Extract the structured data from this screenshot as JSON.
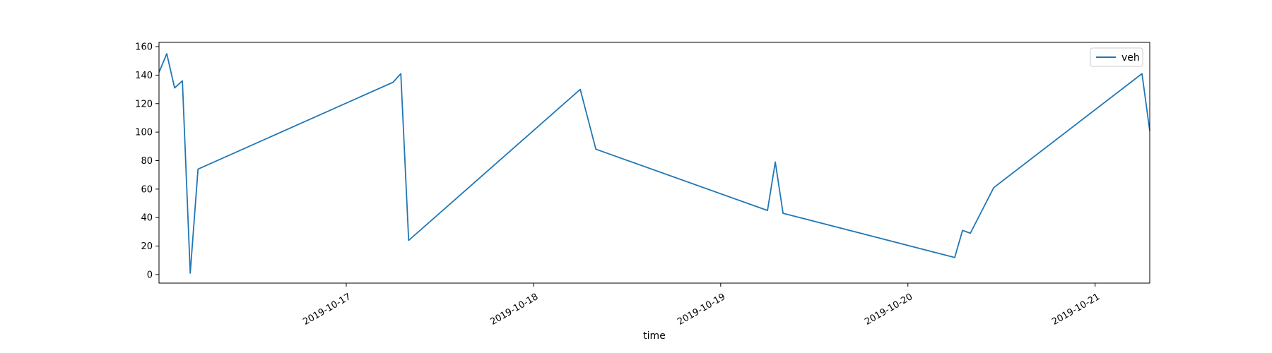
{
  "chart_data": {
    "type": "line",
    "title": "",
    "xlabel": "time",
    "ylabel": "",
    "xlim": [
      "2019-10-16T00:00",
      "2019-10-21T07:00"
    ],
    "ylim": [
      -6,
      163
    ],
    "x_ticks": [
      "2019-10-17",
      "2019-10-18",
      "2019-10-19",
      "2019-10-20",
      "2019-10-21"
    ],
    "y_ticks": [
      0,
      20,
      40,
      60,
      80,
      100,
      120,
      140,
      160
    ],
    "grid": false,
    "legend": "top-right",
    "series": [
      {
        "name": "veh",
        "color": "#1f77b4",
        "points": [
          [
            "2019-10-16T00:00",
            142
          ],
          [
            "2019-10-16T01:00",
            155
          ],
          [
            "2019-10-16T02:00",
            131
          ],
          [
            "2019-10-16T03:00",
            136
          ],
          [
            "2019-10-16T04:00",
            1
          ],
          [
            "2019-10-16T05:00",
            74
          ],
          [
            "2019-10-17T06:00",
            135
          ],
          [
            "2019-10-17T07:00",
            141
          ],
          [
            "2019-10-17T08:00",
            24
          ],
          [
            "2019-10-18T06:00",
            130
          ],
          [
            "2019-10-18T08:00",
            88
          ],
          [
            "2019-10-19T06:00",
            45
          ],
          [
            "2019-10-19T07:00",
            79
          ],
          [
            "2019-10-19T08:00",
            43
          ],
          [
            "2019-10-20T06:00",
            12
          ],
          [
            "2019-10-20T07:00",
            31
          ],
          [
            "2019-10-20T08:00",
            29
          ],
          [
            "2019-10-20T11:00",
            61
          ],
          [
            "2019-10-21T06:00",
            141
          ],
          [
            "2019-10-21T07:00",
            101
          ]
        ]
      }
    ]
  }
}
